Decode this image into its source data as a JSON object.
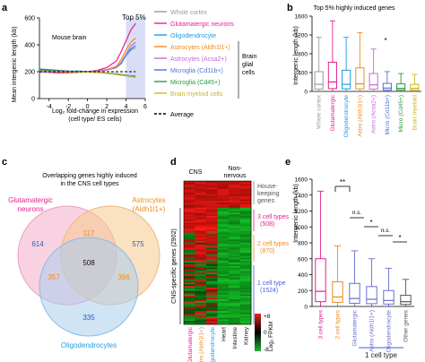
{
  "panels": {
    "a": {
      "letter": "a",
      "annotation_top": "Top 5%",
      "annotation_region": "Mouse brain",
      "ylabel": "Mean intergenic length (kb)",
      "xlabel_line1": "Log₂ fold-change in expression",
      "xlabel_line2": "(cell type/ ES cells)",
      "brace_label_line1": "Brain",
      "brace_label_line2": "glial",
      "brace_label_line3": "cells",
      "average_label": "Average"
    },
    "b": {
      "letter": "b",
      "title": "Top 5% highly induced genes",
      "ylabel": "Intergenic length (kb)",
      "significance": "*"
    },
    "c": {
      "letter": "c",
      "title_line1": "Overlapping genes highly induced",
      "title_line2": "in the CNS cell types",
      "set_a_line1": "Glutamatergic",
      "set_a_line2": "neurons",
      "set_b_line1": "Astrocytes",
      "set_b_line2": "(Aldh1l1+)",
      "set_c": "Oligodendrocytes",
      "counts": {
        "only_a": "614",
        "only_b": "575",
        "only_c": "335",
        "ab": "117",
        "ac": "357",
        "bc": "396",
        "abc": "508"
      }
    },
    "d": {
      "letter": "d",
      "header_cns": "CNS",
      "header_non_line1": "Non-",
      "header_non_line2": "nervous",
      "housekeeping_line1": "House-",
      "housekeeping_line2": "keeping",
      "housekeeping_line3": "genes",
      "side_label": "CNS-specific genes (2902)",
      "g3_line1": "3 cell types",
      "g3_line2": "(508)",
      "g2_line1": "2 cell types",
      "g2_line2": "(870)",
      "g1_line1": "1 cell type",
      "g1_line2": "(1524)",
      "columns": [
        "Glutamatergic",
        "Astro (Aldh1l1+)",
        "Oligodendrocyte",
        "Heart",
        "Intestine",
        "Kidney"
      ],
      "scale_max": "+8",
      "scale_mid": "0",
      "scale_min": "-8",
      "scale_label": "Log₂ FPKM"
    },
    "e": {
      "letter": "e",
      "ylabel": "Intergenic length (kb)",
      "sig_1": "**",
      "sig_2": "n.s.",
      "sig_3": "*",
      "sig_4": "n.s.",
      "sig_5": "*",
      "group_label": "1 cell type"
    }
  },
  "chart_data": [
    {
      "type": "line",
      "panel": "a",
      "xlabel": "Log₂ fold-change in expression (cell type/ ES cells)",
      "ylabel": "Mean intergenic length (kb)",
      "xlim": [
        -5,
        6
      ],
      "ylim": [
        0,
        600
      ],
      "xticks": [
        -4,
        -2,
        0,
        2,
        4,
        6
      ],
      "yticks": [
        0,
        200,
        400,
        600
      ],
      "series": [
        {
          "name": "Whole cortex",
          "color": "#999999",
          "x": [
            -5,
            -3,
            -1,
            0,
            1,
            2,
            3,
            3.5,
            4,
            4.5,
            5
          ],
          "y": [
            210,
            205,
            200,
            200,
            205,
            215,
            230,
            260,
            320,
            360,
            380
          ]
        },
        {
          "name": "Glutamatergic neurons",
          "color": "#e4208f",
          "x": [
            -5,
            -3,
            -1,
            0,
            1,
            2,
            3,
            3.5,
            4,
            4.5,
            5
          ],
          "y": [
            200,
            190,
            195,
            200,
            210,
            230,
            280,
            350,
            430,
            510,
            560
          ]
        },
        {
          "name": "Oligodendrocyte",
          "color": "#1e9be0",
          "x": [
            -5,
            -3,
            -1,
            0,
            1,
            2,
            3,
            3.5,
            4,
            4.5,
            5
          ],
          "y": [
            215,
            200,
            205,
            200,
            205,
            215,
            230,
            260,
            320,
            370,
            395
          ]
        },
        {
          "name": "Astrocytes (Aldh1l1+)",
          "color": "#f08a1e",
          "x": [
            -5,
            -3,
            -1,
            0,
            1,
            2,
            3,
            3.5,
            4,
            4.5,
            5
          ],
          "y": [
            205,
            195,
            200,
            198,
            205,
            215,
            240,
            290,
            360,
            420,
            450
          ]
        },
        {
          "name": "Astrocytes (Acsa2+)",
          "color": "#c26ad8",
          "x": [
            -5,
            -3,
            -1,
            0,
            1,
            2,
            3,
            3.5,
            4,
            4.5,
            5
          ],
          "y": [
            195,
            200,
            198,
            200,
            205,
            212,
            230,
            270,
            330,
            390,
            420
          ]
        },
        {
          "name": "Microglia (Cd11b+)",
          "color": "#4a74d8",
          "x": [
            -5,
            -3,
            -1,
            0,
            1,
            2,
            3,
            3.5,
            4,
            4.5,
            5
          ],
          "y": [
            220,
            210,
            200,
            200,
            195,
            190,
            185,
            180,
            175,
            170,
            170
          ]
        },
        {
          "name": "Microglia (Cd45+)",
          "color": "#2a9a3a",
          "x": [
            -5,
            -3,
            -1,
            0,
            1,
            2,
            3,
            3.5,
            4,
            4.5,
            5
          ],
          "y": [
            210,
            205,
            200,
            198,
            195,
            188,
            180,
            175,
            170,
            165,
            160
          ]
        },
        {
          "name": "Brain myeloid cells",
          "color": "#c9b81a",
          "x": [
            -5,
            -3,
            -1,
            0,
            1,
            2,
            3,
            3.5,
            4,
            4.5,
            5
          ],
          "y": [
            205,
            200,
            198,
            197,
            195,
            190,
            182,
            178,
            172,
            168,
            165
          ]
        },
        {
          "name": "Average",
          "color": "#000000",
          "dashed": true,
          "x": [
            -5,
            5
          ],
          "y": [
            200,
            200
          ]
        }
      ]
    },
    {
      "type": "box",
      "panel": "b",
      "title": "Top 5% highly induced genes",
      "ylabel": "Intergenic length (kb)",
      "ylim": [
        0,
        1600
      ],
      "yticks": [
        0,
        400,
        800,
        1200,
        1600
      ],
      "categories": [
        "Whole cortex",
        "Glutamatergic",
        "Oligodendrocyte",
        "Astro (Aldh1l1+)",
        "Astro (Acsa2+)",
        "Micro (Cd11b+)",
        "Micro (Cd45+)",
        "Brain myeloid"
      ],
      "colors": [
        "#999999",
        "#e4208f",
        "#1e9be0",
        "#f08a1e",
        "#c26ad8",
        "#4a74d8",
        "#2a9a3a",
        "#c9b81a"
      ],
      "boxes": [
        {
          "q1": 50,
          "median": 150,
          "q3": 420,
          "low": 5,
          "high": 1150
        },
        {
          "q1": 60,
          "median": 200,
          "q3": 620,
          "low": 5,
          "high": 1500
        },
        {
          "q1": 55,
          "median": 150,
          "q3": 450,
          "low": 5,
          "high": 1150
        },
        {
          "q1": 55,
          "median": 160,
          "q3": 500,
          "low": 5,
          "high": 1250
        },
        {
          "q1": 50,
          "median": 140,
          "q3": 380,
          "low": 5,
          "high": 900
        },
        {
          "q1": 25,
          "median": 70,
          "q3": 170,
          "low": 3,
          "high": 420
        },
        {
          "q1": 25,
          "median": 65,
          "q3": 160,
          "low": 3,
          "high": 380
        },
        {
          "q1": 25,
          "median": 65,
          "q3": 150,
          "low": 3,
          "high": 360
        }
      ]
    },
    {
      "type": "box",
      "panel": "e",
      "ylabel": "Intergenic length (kb)",
      "ylim": [
        0,
        1600
      ],
      "yticks": [
        0,
        200,
        400,
        600,
        800,
        1000,
        1200,
        1400,
        1600
      ],
      "categories": [
        "3 cell types",
        "2 cell types",
        "Glutamatergic",
        "Astro (Aldh1l1+)",
        "Oligodendrocyte",
        "Other genes"
      ],
      "colors": [
        "#e4208f",
        "#f08a1e",
        "#6a6fd0",
        "#6a6fd0",
        "#6a6fd0",
        "#555555"
      ],
      "boxes": [
        {
          "q1": 60,
          "median": 190,
          "q3": 600,
          "low": 5,
          "high": 1450
        },
        {
          "q1": 50,
          "median": 120,
          "q3": 310,
          "low": 5,
          "high": 760
        },
        {
          "q1": 40,
          "median": 100,
          "q3": 290,
          "low": 5,
          "high": 700
        },
        {
          "q1": 35,
          "median": 90,
          "q3": 250,
          "low": 5,
          "high": 600
        },
        {
          "q1": 30,
          "median": 75,
          "q3": 200,
          "low": 5,
          "high": 480
        },
        {
          "q1": 25,
          "median": 60,
          "q3": 140,
          "low": 3,
          "high": 340
        }
      ]
    }
  ]
}
